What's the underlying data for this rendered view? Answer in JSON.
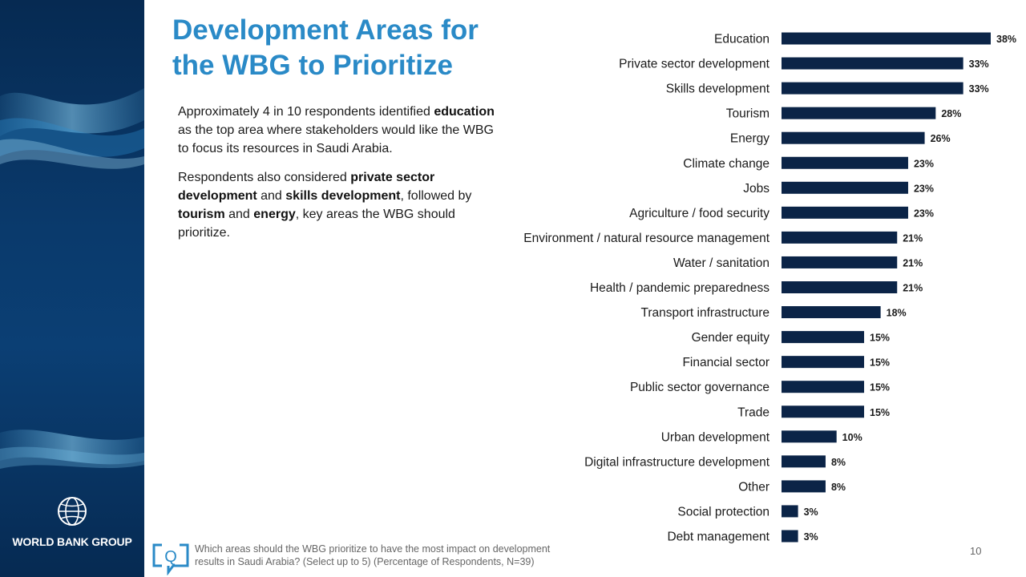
{
  "slide": {
    "title_line1": "Development Areas for",
    "title_line2": "the WBG to Prioritize",
    "para1": [
      {
        "text": "Approximately 4 in 10 respondents identified ",
        "bold": false
      },
      {
        "text": "education",
        "bold": true
      },
      {
        "text": " as the top area where stakeholders would like the WBG to focus its resources in Saudi Arabia.",
        "bold": false
      }
    ],
    "para2": [
      {
        "text": "Respondents also considered ",
        "bold": false
      },
      {
        "text": "private sector development",
        "bold": true
      },
      {
        "text": " and ",
        "bold": false
      },
      {
        "text": "skills development",
        "bold": true
      },
      {
        "text": ", followed by ",
        "bold": false
      },
      {
        "text": "tourism",
        "bold": true
      },
      {
        "text": " and ",
        "bold": false
      },
      {
        "text": "energy",
        "bold": true
      },
      {
        "text": ", key areas the WBG should prioritize.",
        "bold": false
      }
    ],
    "footnote_line1": "Which areas should the WBG prioritize to have the most impact on development",
    "footnote_line2": "results in Saudi Arabia?  (Select up to 5) (Percentage of Respondents, N=39)",
    "page_number": "10",
    "logo_text": "WORLD BANK GROUP",
    "footnote_icon": "question-bubble-icon",
    "logo_icon": "globe-icon"
  },
  "colors": {
    "bar": "#0b2447",
    "title": "#2a8ac7",
    "sidebar": "#0a3a6c"
  },
  "chart_data": {
    "type": "bar",
    "orientation": "horizontal",
    "unit": "%",
    "categories": [
      "Education",
      "Private sector development",
      "Skills development",
      "Tourism",
      "Energy",
      "Climate change",
      "Jobs",
      "Agriculture / food security",
      "Environment / natural resource management",
      "Water / sanitation",
      "Health / pandemic preparedness",
      "Transport infrastructure",
      "Gender equity",
      "Financial sector",
      "Public sector governance",
      "Trade",
      "Urban development",
      "Digital infrastructure development",
      "Other",
      "Social protection",
      "Debt management"
    ],
    "values": [
      38,
      33,
      33,
      28,
      26,
      23,
      23,
      23,
      21,
      21,
      21,
      18,
      15,
      15,
      15,
      15,
      10,
      8,
      8,
      3,
      3
    ],
    "labels": [
      "38%",
      "33%",
      "33%",
      "28%",
      "26%",
      "23%",
      "23%",
      "23%",
      "21%",
      "21%",
      "21%",
      "18%",
      "15%",
      "15%",
      "15%",
      "15%",
      "10%",
      "8%",
      "8%",
      "3%",
      "3%"
    ],
    "xlim": [
      0,
      38
    ],
    "grid": false,
    "legend": "none"
  }
}
